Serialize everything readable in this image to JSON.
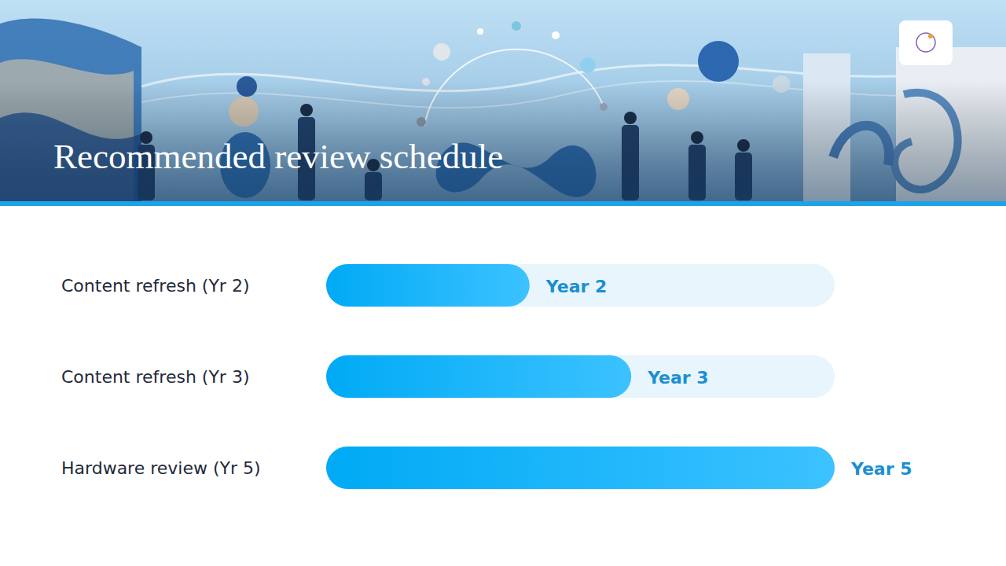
{
  "chart_data": {
    "type": "bar",
    "title": "Recommended review schedule",
    "orientation": "horizontal",
    "categories": [
      "Content refresh (Yr 2)",
      "Content refresh (Yr 3)",
      "Hardware review (Yr 5)"
    ],
    "values": [
      2,
      3,
      5
    ],
    "value_labels": [
      "Year 2",
      "Year 3",
      "Year 5"
    ],
    "data_labels": true,
    "xlim": [
      0,
      5
    ],
    "tick_labels": "y",
    "grid": false,
    "color": "#00aaf5"
  }
}
